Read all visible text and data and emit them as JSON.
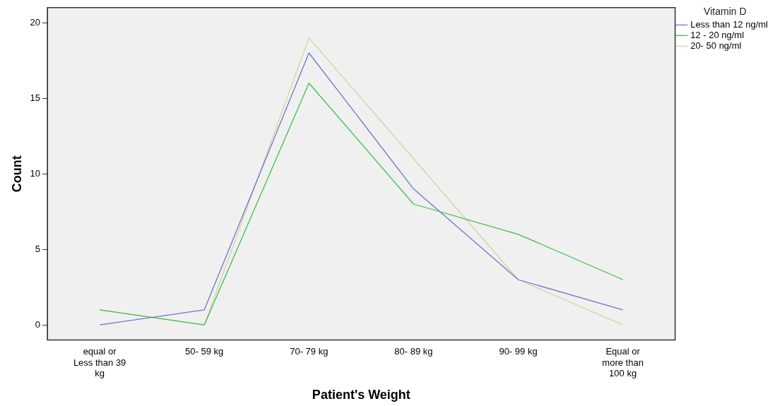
{
  "chart_data": {
    "type": "line",
    "xlabel": "Patient's Weight",
    "ylabel": "Count",
    "legend_title": "Vitamin D",
    "legend": "top right",
    "grid": false,
    "marker": "none",
    "line_style": "solid",
    "categories": [
      "equal or Less than 39 kg",
      "50- 59 kg",
      "70- 79 kg",
      "80- 89 kg",
      "90- 99 kg",
      "Equal or more than 100 kg"
    ],
    "ylim": [
      -1,
      21
    ],
    "yticks": [
      0,
      5,
      10,
      15,
      20
    ],
    "series": [
      {
        "name": "Less than 12 ng/ml",
        "color": "#6a78c8",
        "values": [
          0,
          1,
          18,
          9,
          3,
          1
        ]
      },
      {
        "name": "12 - 20 ng/ml",
        "color": "#3cc04c",
        "values": [
          1,
          0,
          16,
          8,
          6,
          3
        ]
      },
      {
        "name": "20- 50 ng/ml",
        "color": "#d8d0a0",
        "values": [
          1,
          0,
          19,
          11,
          3,
          0
        ]
      }
    ]
  }
}
